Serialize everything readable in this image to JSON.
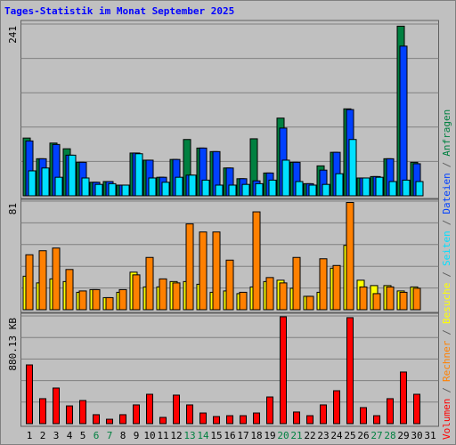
{
  "chart_data": [
    {
      "type": "bar",
      "title": "Tages-Statistik im Monat September 2025",
      "categories": [
        "1",
        "2",
        "3",
        "4",
        "5",
        "6",
        "7",
        "8",
        "9",
        "10",
        "11",
        "12",
        "13",
        "14",
        "15",
        "16",
        "17",
        "18",
        "19",
        "20",
        "21",
        "22",
        "23",
        "24",
        "25",
        "26",
        "27",
        "28",
        "29",
        "30",
        "31"
      ],
      "highlight_categories": [
        5,
        6,
        12,
        13,
        19,
        20,
        26,
        27
      ],
      "highlight_color": "#008040",
      "legend_separator": "/",
      "grid_lines": 5,
      "ylim": [
        0,
        241
      ],
      "yticks": [
        241
      ],
      "series": [
        {
          "name": "Anfragen",
          "color": "#008040",
          "values": [
            81,
            52,
            74,
            66,
            47,
            19,
            20,
            15,
            60,
            50,
            26,
            51,
            79,
            67,
            62,
            39,
            24,
            80,
            32,
            109,
            47,
            17,
            42,
            61,
            122,
            25,
            27,
            52,
            238,
            47,
            null
          ]
        },
        {
          "name": "Dateien",
          "color": "#0040ff",
          "values": [
            77,
            52,
            72,
            57,
            47,
            19,
            20,
            15,
            60,
            50,
            26,
            51,
            29,
            67,
            62,
            39,
            24,
            21,
            32,
            95,
            47,
            17,
            36,
            61,
            121,
            25,
            27,
            52,
            210,
            45,
            null
          ]
        },
        {
          "name": "Seiten",
          "color": "#00e0ff",
          "values": [
            35,
            39,
            26,
            57,
            25,
            16,
            17,
            15,
            59,
            25,
            19,
            26,
            29,
            22,
            15,
            15,
            16,
            17,
            22,
            50,
            20,
            15,
            16,
            31,
            79,
            25,
            26,
            20,
            22,
            20,
            null
          ]
        }
      ]
    },
    {
      "type": "bar",
      "grid_lines": 5,
      "ylim": [
        0,
        81
      ],
      "yticks": [
        81
      ],
      "series": [
        {
          "name": "Besuche",
          "color": "#ffff00",
          "values": [
            25,
            20,
            23,
            21,
            13,
            15,
            9,
            13,
            28,
            17,
            17,
            21,
            21,
            19,
            13,
            14,
            12,
            17,
            21,
            22,
            16,
            10,
            13,
            31,
            48,
            22,
            18,
            18,
            14,
            17,
            null
          ]
        },
        {
          "name": "Rechner",
          "color": "#ff8000",
          "values": [
            41,
            44,
            46,
            30,
            14,
            15,
            9,
            15,
            26,
            39,
            23,
            20,
            64,
            58,
            58,
            37,
            13,
            73,
            24,
            20,
            39,
            10,
            38,
            33,
            80,
            17,
            12,
            17,
            13,
            16,
            null
          ]
        }
      ]
    },
    {
      "type": "bar",
      "grid_lines": 5,
      "ylim": [
        0,
        880.13
      ],
      "yticks": [
        {
          "value": 880.13,
          "label": "880.13 KB"
        }
      ],
      "series": [
        {
          "name": "Volumen",
          "color": "#ff0000",
          "values": [
            480,
            204,
            291,
            145,
            189,
            73,
            36,
            73,
            153,
            240,
            51,
            233,
            153,
            87,
            58,
            65,
            65,
            87,
            218,
            873,
            95,
            65,
            153,
            269,
            866,
            131,
            65,
            204,
            422,
            240,
            null
          ]
        }
      ]
    }
  ]
}
